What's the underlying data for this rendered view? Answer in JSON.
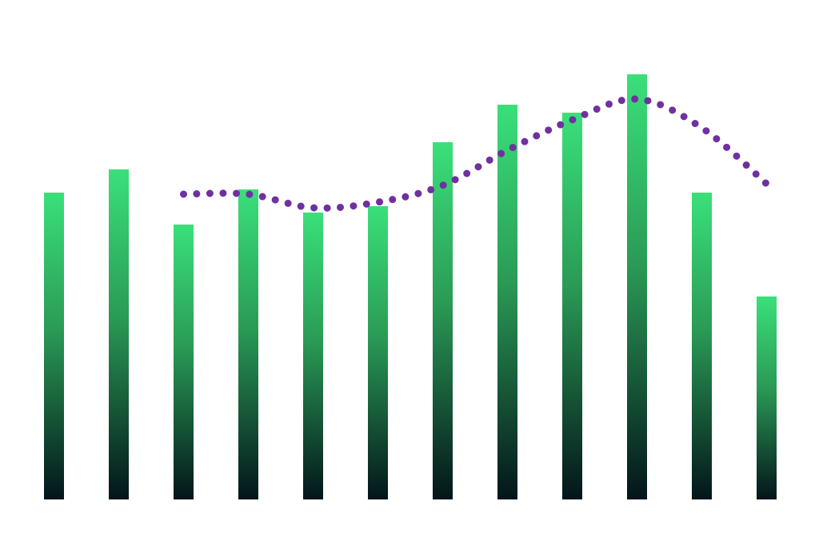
{
  "chart_data": {
    "type": "bar",
    "categories": [
      null,
      null,
      null,
      null,
      null,
      null,
      null,
      null,
      null,
      null,
      null,
      null
    ],
    "ylim": [
      0,
      550
    ],
    "series": [
      {
        "type": "bar",
        "color": "#3ae07a",
        "values": [
          384,
          413,
          344,
          388,
          359,
          367,
          447,
          494,
          484,
          532,
          384,
          254
        ]
      },
      {
        "type": "line",
        "color": "#7030a0",
        "values": [
          null,
          null,
          382,
          382,
          365,
          372,
          393,
          437,
          475,
          501,
          465,
          395
        ]
      }
    ]
  }
}
